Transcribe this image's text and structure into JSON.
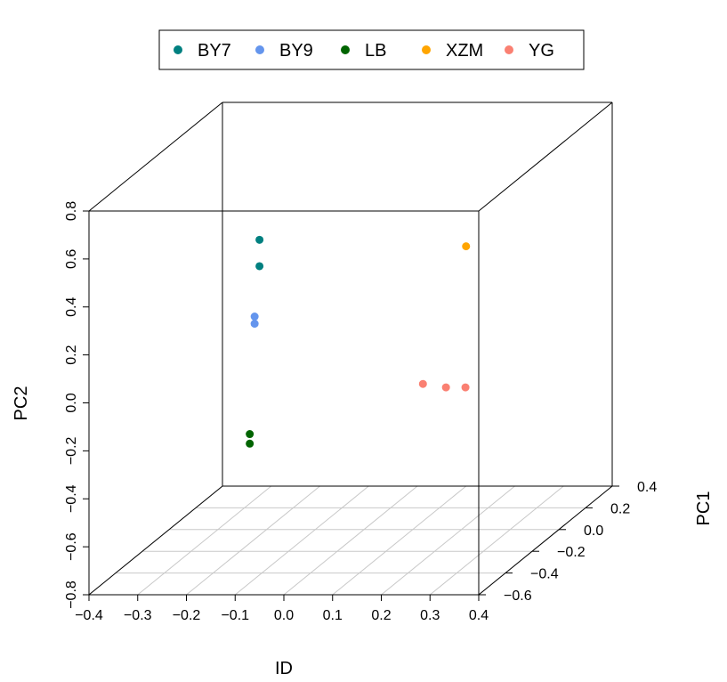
{
  "chart_data": {
    "type": "scatter3d",
    "title": "",
    "xlabel": "ID",
    "ylabel": "PC2",
    "zlabel": "PC1",
    "xlim": [
      -0.4,
      0.4
    ],
    "ylim": [
      -0.8,
      0.8
    ],
    "zlim": [
      -0.6,
      0.4
    ],
    "x_ticks": [
      "−0.4",
      "−0.3",
      "−0.2",
      "−0.1",
      "0.0",
      "0.1",
      "0.2",
      "0.3",
      "0.4"
    ],
    "y_ticks": [
      "−0.8",
      "−0.6",
      "−0.4",
      "−0.2",
      "0.0",
      "0.2",
      "0.4",
      "0.6",
      "0.8"
    ],
    "z_ticks": [
      "−0.6",
      "−0.4",
      "−0.2",
      "0.0",
      "0.2",
      "0.4"
    ],
    "x_tick_values": [
      -0.4,
      -0.3,
      -0.2,
      -0.1,
      0.0,
      0.1,
      0.2,
      0.3,
      0.4
    ],
    "y_tick_values": [
      -0.8,
      -0.6,
      -0.4,
      -0.2,
      0.0,
      0.2,
      0.4,
      0.6,
      0.8
    ],
    "z_tick_values": [
      -0.6,
      -0.4,
      -0.2,
      0.0,
      0.2,
      0.4
    ],
    "grid": "floor",
    "legend_position": "top",
    "series": [
      {
        "name": "BY7",
        "color": "#008080",
        "points": [
          [
            -0.05,
            0.68,
            -0.6
          ],
          [
            -0.05,
            0.57,
            -0.6
          ]
        ]
      },
      {
        "name": "BY9",
        "color": "#6495ED",
        "points": [
          [
            -0.06,
            0.36,
            -0.6
          ],
          [
            -0.06,
            0.33,
            -0.6
          ]
        ]
      },
      {
        "name": "LB",
        "color": "#006400",
        "points": [
          [
            -0.07,
            -0.13,
            -0.6
          ],
          [
            -0.07,
            -0.17,
            -0.6
          ]
        ]
      },
      {
        "name": "XZM",
        "color": "#FFA500",
        "points": [
          [
            0.1,
            0.2,
            0.4
          ]
        ]
      },
      {
        "name": "YG",
        "color": "#FA8072",
        "points": [
          [
            0.28,
            0.07,
            -0.58
          ],
          [
            0.33,
            0.06,
            -0.59
          ],
          [
            0.37,
            0.06,
            -0.59
          ]
        ]
      }
    ]
  }
}
